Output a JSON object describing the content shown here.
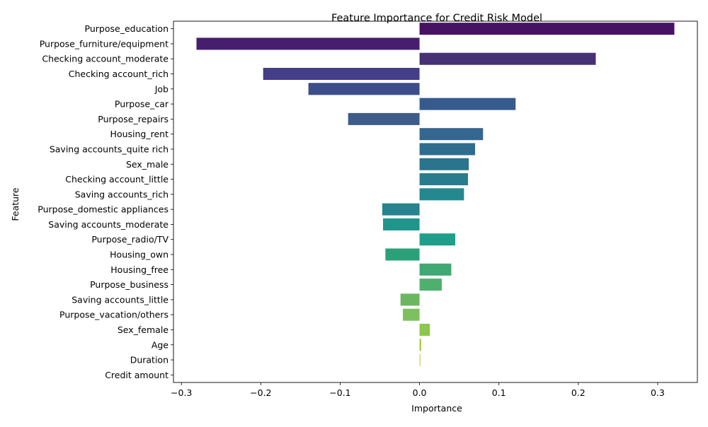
{
  "chart_data": {
    "type": "bar",
    "orientation": "horizontal",
    "title": "Feature Importance for Credit Risk Model",
    "xlabel": "Importance",
    "ylabel": "Feature",
    "xlim": [
      -0.31,
      0.35
    ],
    "xticks": [
      -0.3,
      -0.2,
      -0.1,
      0.0,
      0.1,
      0.2,
      0.3
    ],
    "xtick_labels": [
      "−0.3",
      "−0.2",
      "−0.1",
      "0.0",
      "0.1",
      "0.2",
      "0.3"
    ],
    "grid": false,
    "palette": "viridis",
    "categories": [
      "Purpose_education",
      "Purpose_furniture/equipment",
      "Checking account_moderate",
      "Checking account_rich",
      "Job",
      "Purpose_car",
      "Purpose_repairs",
      "Housing_rent",
      "Saving accounts_quite rich",
      "Sex_male",
      "Checking account_little",
      "Saving accounts_rich",
      "Purpose_domestic appliances",
      "Saving accounts_moderate",
      "Purpose_radio/TV",
      "Housing_own",
      "Housing_free",
      "Purpose_business",
      "Saving accounts_little",
      "Purpose_vacation/others",
      "Sex_female",
      "Age",
      "Duration",
      "Credit amount"
    ],
    "values": [
      0.321,
      -0.281,
      0.222,
      -0.197,
      -0.14,
      0.121,
      -0.09,
      0.08,
      0.07,
      0.062,
      0.061,
      0.056,
      -0.047,
      -0.046,
      0.045,
      -0.043,
      0.04,
      0.028,
      -0.024,
      -0.021,
      0.013,
      0.002,
      0.001,
      0.0
    ],
    "colors": [
      "#471164",
      "#471e6e",
      "#463175",
      "#433e85",
      "#3d4d8a",
      "#375b8d",
      "#3e5b8a",
      "#35668f",
      "#2f6d8e",
      "#2b748e",
      "#287c8e",
      "#23898e",
      "#27838e",
      "#1f958b",
      "#1f9e89",
      "#2ba079",
      "#40a873",
      "#4fb06d",
      "#6ab75f",
      "#7dc15e",
      "#8cc64c",
      "#a5c93c",
      "#c1cc2c",
      "#dddd22"
    ]
  }
}
